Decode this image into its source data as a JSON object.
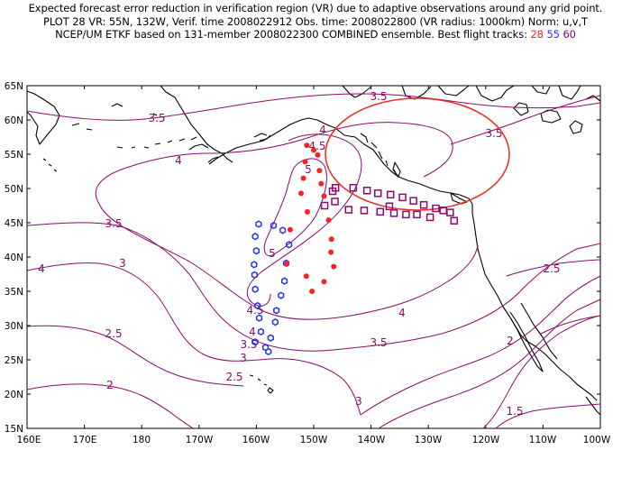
{
  "title": {
    "line1": "Expected forecast error reduction in verification region (VR) due to adaptive observations around any grid point.",
    "line2": "PLOT 28 VR: 55N, 132W, Verif. time 2008022912 Obs. time: 2008022800 (VR radius: 1000km) Norm: u,v,T",
    "line3_prefix": "NCEP/UM ETKF based on 131-member 2008022300 COMBINED ensemble.  Best flight tracks:",
    "track_a": "28",
    "track_b": "55",
    "track_c": "60"
  },
  "axes": {
    "lat_labels": [
      "65N",
      "60N",
      "55N",
      "50N",
      "45N",
      "40N",
      "35N",
      "30N",
      "25N",
      "20N",
      "15N"
    ],
    "lon_labels": [
      "160E",
      "170E",
      "180",
      "170W",
      "160W",
      "150W",
      "140W",
      "130W",
      "120W",
      "110W",
      "100W"
    ]
  },
  "contour_labels": {
    "l1": "3.5",
    "l2": "3.5",
    "l3": "4",
    "l4": "4",
    "l5": "4.5",
    "l6": "5",
    "l7": "3.5",
    "l8": "4",
    "l9": "3",
    "l10": "5",
    "l11": "4.5",
    "l12": "3.5",
    "l13": "4",
    "l14": "3",
    "l15": "2.5",
    "l16": "2.5",
    "l17": "2",
    "l18": "3",
    "l19": "3.5",
    "l20": "2.5",
    "l21": "2",
    "l22": "1.5"
  },
  "verification_region": {
    "lat": 55,
    "lon": -132,
    "radius_km": 1000
  },
  "colors": {
    "contour": "#8a0a6e",
    "track28": "#ff2020",
    "track55": "#2a35e8",
    "track60": "#8a0a6e",
    "vr_circle": "#e8322a"
  },
  "tracks": {
    "track28": [
      [
        56.3,
        -151.2
      ],
      [
        55.6,
        -150.0
      ],
      [
        54.9,
        -149.3
      ],
      [
        53.9,
        -151.5
      ],
      [
        52.6,
        -149.0
      ],
      [
        51.5,
        -151.8
      ],
      [
        50.7,
        -148.7
      ],
      [
        49.3,
        -152.2
      ],
      [
        48.9,
        -148.2
      ],
      [
        46.6,
        -151.1
      ],
      [
        45.4,
        -147.4
      ],
      [
        44.0,
        -154.1
      ],
      [
        42.6,
        -146.9
      ],
      [
        40.7,
        -147.0
      ],
      [
        39.0,
        -154.7
      ],
      [
        38.6,
        -146.5
      ],
      [
        37.2,
        -151.3
      ],
      [
        36.4,
        -148.2
      ],
      [
        35.0,
        -150.3
      ]
    ],
    "track55": [
      [
        44.8,
        -159.6
      ],
      [
        44.6,
        -157.0
      ],
      [
        43.9,
        -155.4
      ],
      [
        43.0,
        -160.2
      ],
      [
        41.8,
        -154.3
      ],
      [
        40.9,
        -160.0
      ],
      [
        39.1,
        -154.8
      ],
      [
        38.9,
        -160.4
      ],
      [
        37.4,
        -160.3
      ],
      [
        36.5,
        -155.1
      ],
      [
        35.3,
        -160.2
      ],
      [
        34.4,
        -155.7
      ],
      [
        32.9,
        -159.8
      ],
      [
        32.2,
        -156.5
      ],
      [
        31.1,
        -159.5
      ],
      [
        30.5,
        -156.7
      ],
      [
        29.1,
        -159.2
      ],
      [
        28.2,
        -157.5
      ],
      [
        27.6,
        -160.2
      ],
      [
        26.8,
        -158.4
      ],
      [
        26.2,
        -157.9
      ]
    ],
    "track60": [
      [
        50.1,
        -146.2
      ],
      [
        50.1,
        -143.1
      ],
      [
        49.7,
        -140.7
      ],
      [
        49.6,
        -146.7
      ],
      [
        49.3,
        -138.8
      ],
      [
        49.1,
        -136.6
      ],
      [
        48.7,
        -134.5
      ],
      [
        48.2,
        -132.6
      ],
      [
        48.1,
        -146.3
      ],
      [
        47.6,
        -130.8
      ],
      [
        47.5,
        -148.1
      ],
      [
        47.4,
        -136.8
      ],
      [
        47.1,
        -128.7
      ],
      [
        46.9,
        -143.9
      ],
      [
        46.8,
        -127.4
      ],
      [
        46.8,
        -141.2
      ],
      [
        46.6,
        -138.4
      ],
      [
        46.5,
        -126.2
      ],
      [
        46.4,
        -136.0
      ],
      [
        46.2,
        -133.9
      ],
      [
        46.2,
        -132.0
      ],
      [
        45.8,
        -129.7
      ],
      [
        45.3,
        -125.5
      ]
    ]
  }
}
